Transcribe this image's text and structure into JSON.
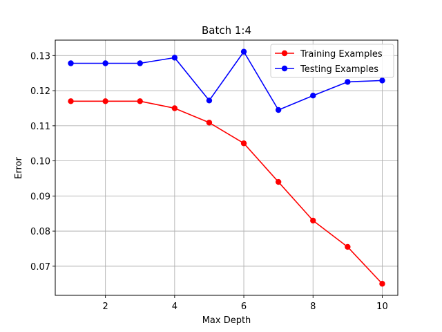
{
  "chart_data": {
    "type": "line",
    "title": "Batch 1:4",
    "xlabel": "Max Depth",
    "ylabel": "Error",
    "x": [
      1,
      2,
      3,
      4,
      5,
      6,
      7,
      8,
      9,
      10
    ],
    "series": [
      {
        "name": "Training Examples",
        "color": "#ff0000",
        "marker": "circle",
        "values": [
          0.117,
          0.117,
          0.117,
          0.115,
          0.1109,
          0.105,
          0.094,
          0.083,
          0.0755,
          0.065
        ]
      },
      {
        "name": "Testing Examples",
        "color": "#0000ff",
        "marker": "circle",
        "values": [
          0.1278,
          0.1278,
          0.1278,
          0.1294,
          0.1172,
          0.1311,
          0.1145,
          0.1186,
          0.1225,
          0.1229
        ]
      }
    ],
    "xlim": [
      0.55,
      10.45
    ],
    "ylim": [
      0.0617,
      0.1344
    ],
    "xticks": [
      2,
      4,
      6,
      8,
      10
    ],
    "yticks": [
      0.07,
      0.08,
      0.09,
      0.1,
      0.11,
      0.12,
      0.13
    ],
    "xtick_labels": [
      "2",
      "4",
      "6",
      "8",
      "10"
    ],
    "ytick_labels": [
      "0.07",
      "0.08",
      "0.09",
      "0.10",
      "0.11",
      "0.12",
      "0.13"
    ],
    "grid": true,
    "legend_position": "top-right"
  }
}
